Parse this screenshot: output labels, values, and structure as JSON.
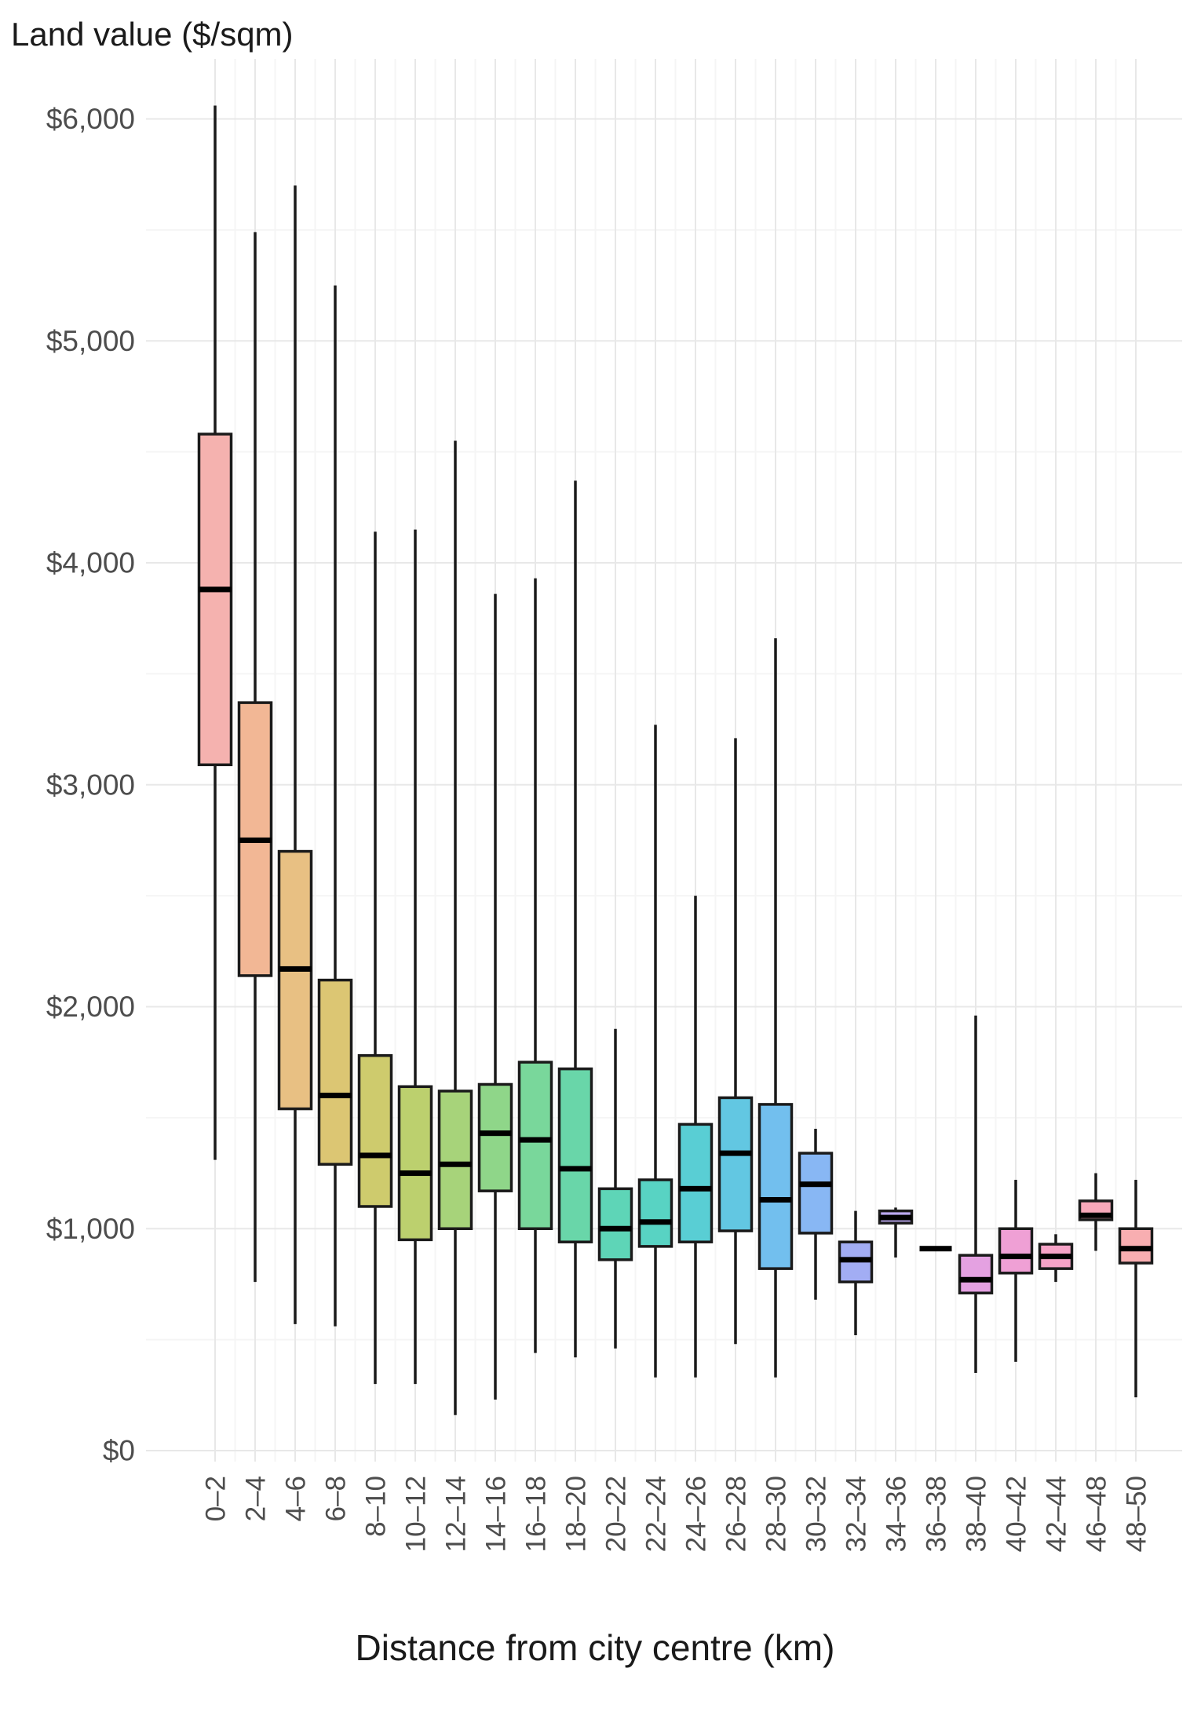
{
  "titles": {
    "y_axis_title": "Land value ($/sqm)",
    "x_axis_title": "Distance from city centre (km)"
  },
  "colors": {
    "background": "#ffffff",
    "box_stroke": "#1a1a1a",
    "whisker": "#1a1a1a",
    "median": "#000000",
    "grid_major": "#e8e8e8",
    "grid_minor": "#f5f5f5",
    "axis_text": "#4d4d4d",
    "title_text": "#1a1a1a"
  },
  "chart_data": {
    "type": "boxplot",
    "title": "",
    "xlabel": "Distance from city centre (km)",
    "ylabel": "Land value ($/sqm)",
    "ylim": [
      0,
      6270
    ],
    "grid": "major and minor horizontal + vertical, light gray, white panel",
    "legend": "none",
    "y_ticks": [
      {
        "value": 0,
        "label": "$0"
      },
      {
        "value": 1000,
        "label": "$1,000"
      },
      {
        "value": 2000,
        "label": "$2,000"
      },
      {
        "value": 3000,
        "label": "$3,000"
      },
      {
        "value": 4000,
        "label": "$4,000"
      },
      {
        "value": 5000,
        "label": "$5,000"
      },
      {
        "value": 6000,
        "label": "$6,000"
      }
    ],
    "y_minor_ticks": [
      500,
      1500,
      2500,
      3500,
      4500,
      5500
    ],
    "note": "bin 44–46 has no data and is absent from the axis",
    "boxes": [
      {
        "label": "0–2",
        "color": "#f5b2af",
        "lo": 1310,
        "q1": 3090,
        "med": 3880,
        "q3": 4580,
        "hi": 6060
      },
      {
        "label": "2–4",
        "color": "#f2b795",
        "lo": 760,
        "q1": 2140,
        "med": 2750,
        "q3": 3370,
        "hi": 5490
      },
      {
        "label": "4–6",
        "color": "#e8c083",
        "lo": 570,
        "q1": 1540,
        "med": 2170,
        "q3": 2700,
        "hi": 5700
      },
      {
        "label": "6–8",
        "color": "#dcc673",
        "lo": 560,
        "q1": 1290,
        "med": 1600,
        "q3": 2120,
        "hi": 5250
      },
      {
        "label": "8–10",
        "color": "#cecb6d",
        "lo": 300,
        "q1": 1100,
        "med": 1330,
        "q3": 1780,
        "hi": 4140
      },
      {
        "label": "10–12",
        "color": "#bcd06e",
        "lo": 300,
        "q1": 950,
        "med": 1250,
        "q3": 1640,
        "hi": 4150
      },
      {
        "label": "12–14",
        "color": "#a7d37a",
        "lo": 160,
        "q1": 1000,
        "med": 1290,
        "q3": 1620,
        "hi": 4550
      },
      {
        "label": "14–16",
        "color": "#8fd689",
        "lo": 230,
        "q1": 1170,
        "med": 1430,
        "q3": 1650,
        "hi": 3860
      },
      {
        "label": "16–18",
        "color": "#79d79b",
        "lo": 440,
        "q1": 1000,
        "med": 1400,
        "q3": 1750,
        "hi": 3930
      },
      {
        "label": "18–20",
        "color": "#69d6a9",
        "lo": 420,
        "q1": 940,
        "med": 1270,
        "q3": 1720,
        "hi": 4370
      },
      {
        "label": "20–22",
        "color": "#5ed5b7",
        "lo": 460,
        "q1": 860,
        "med": 1000,
        "q3": 1180,
        "hi": 1900
      },
      {
        "label": "22–24",
        "color": "#58d3c3",
        "lo": 330,
        "q1": 920,
        "med": 1030,
        "q3": 1220,
        "hi": 3270
      },
      {
        "label": "24–26",
        "color": "#59ced4",
        "lo": 330,
        "q1": 940,
        "med": 1180,
        "q3": 1470,
        "hi": 2500
      },
      {
        "label": "26–28",
        "color": "#62c7e2",
        "lo": 480,
        "q1": 990,
        "med": 1340,
        "q3": 1590,
        "hi": 3210
      },
      {
        "label": "28–30",
        "color": "#72bfee",
        "lo": 330,
        "q1": 820,
        "med": 1130,
        "q3": 1560,
        "hi": 3660
      },
      {
        "label": "30–32",
        "color": "#88b7f4",
        "lo": 680,
        "q1": 980,
        "med": 1200,
        "q3": 1340,
        "hi": 1450
      },
      {
        "label": "32–34",
        "color": "#a2adf4",
        "lo": 520,
        "q1": 760,
        "med": 860,
        "q3": 940,
        "hi": 1080
      },
      {
        "label": "34–36",
        "color": "#bba9f0",
        "lo": 870,
        "q1": 1025,
        "med": 1050,
        "q3": 1080,
        "hi": 1095
      },
      {
        "label": "36–38",
        "color": "#d2a5ea",
        "lo": null,
        "q1": null,
        "med": 910,
        "q3": null,
        "hi": null
      },
      {
        "label": "38–40",
        "color": "#e4a1e1",
        "lo": 350,
        "q1": 710,
        "med": 770,
        "q3": 880,
        "hi": 1960
      },
      {
        "label": "40–42",
        "color": "#efa0d5",
        "lo": 400,
        "q1": 800,
        "med": 875,
        "q3": 1000,
        "hi": 1220
      },
      {
        "label": "42–44",
        "color": "#f6a3c7",
        "lo": 760,
        "q1": 820,
        "med": 875,
        "q3": 930,
        "hi": 975
      },
      {
        "label": "46–48",
        "color": "#f8a8ba",
        "lo": 900,
        "q1": 1040,
        "med": 1060,
        "q3": 1125,
        "hi": 1250
      },
      {
        "label": "48–50",
        "color": "#f8aeb1",
        "lo": 240,
        "q1": 845,
        "med": 910,
        "q3": 1000,
        "hi": 1220
      }
    ]
  }
}
